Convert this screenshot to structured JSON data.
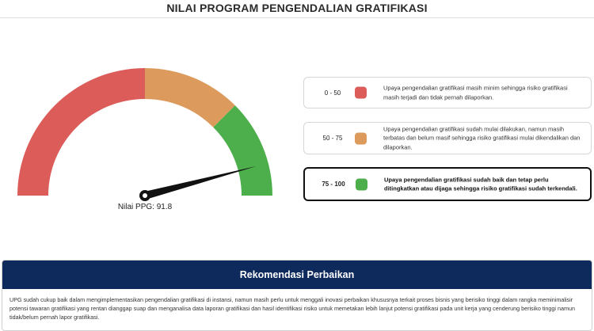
{
  "header": {
    "title": "NILAI PROGRAM PENGENDALIAN GRATIFIKASI"
  },
  "gauge": {
    "label": "Nilai PPG",
    "value": 91.8,
    "display": "Nilai PPG: 91.8",
    "min": 0,
    "max": 100,
    "bands": [
      {
        "from": 0,
        "to": 50,
        "color": "#dc5c5a"
      },
      {
        "from": 50,
        "to": 75,
        "color": "#dc9b5c"
      },
      {
        "from": 75,
        "to": 100,
        "color": "#4caf4c"
      }
    ]
  },
  "legend": [
    {
      "range": "0 - 50",
      "color": "#dc5c5a",
      "text": "Upaya pengendalian gratifikasi masih minim sehingga risiko gratifikasi masih terjadi dan tidak pernah dilaporkan.",
      "active": false
    },
    {
      "range": "50 - 75",
      "color": "#dc9b5c",
      "text": "Upaya pengendalian gratifikasi sudah mulai dilakukan, namun masih terbatas dan belum masif sehingga risiko gratifikasi mulai dikendalikan dan dilaporkan.",
      "active": false
    },
    {
      "range": "75 - 100",
      "color": "#4caf4c",
      "text": "Upaya pengendalian gratifikasi sudah baik dan tetap perlu ditingkatkan atau dijaga sehingga risiko gratifikasi sudah terkendali.",
      "active": true
    }
  ],
  "recommendation": {
    "title": "Rekomendasi Perbaikan",
    "body": "UPG sudah cukup baik dalam mengimplementasikan pengendalian gratifikasi di instansi, namun masih perlu untuk menggali inovasi perbaikan khususnya terkait proses bisnis yang berisiko tinggi dalam rangka meminimalisir potensi tawaran gratifikasi yang rentan dianggap suap dan menganalisa data laporan gratifikasi dan hasil identifikasi risiko untuk memetakan lebih lanjut potensi gratifikasi pada unit kerja yang cenderung berisiko tinggi namun tidak/belum pernah lapor gratifikasi."
  }
}
